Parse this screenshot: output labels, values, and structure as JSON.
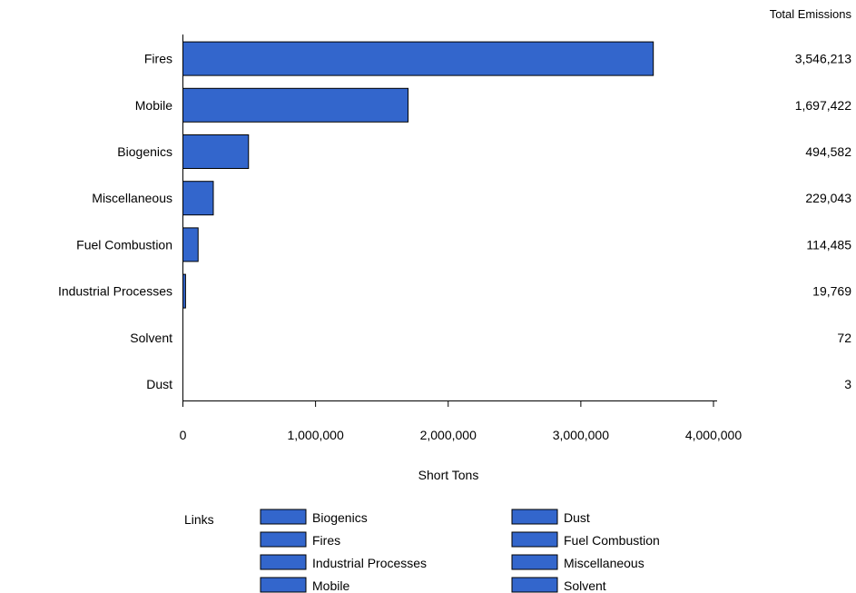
{
  "chart_data": {
    "type": "bar",
    "orientation": "horizontal",
    "categories": [
      "Fires",
      "Mobile",
      "Biogenics",
      "Miscellaneous",
      "Fuel Combustion",
      "Industrial Processes",
      "Solvent",
      "Dust"
    ],
    "values": [
      3546213,
      1697422,
      494582,
      229043,
      114485,
      19769,
      72,
      3
    ],
    "value_labels": [
      "3,546,213",
      "1,697,422",
      "494,582",
      "229,043",
      "114,485",
      "19,769",
      "72",
      "3"
    ],
    "value_column_title": "Total Emissions",
    "xlabel": "Short Tons",
    "ylabel": "",
    "xlim": [
      0,
      4000000
    ],
    "xticks": [
      0,
      1000000,
      2000000,
      3000000,
      4000000
    ],
    "xtick_labels": [
      "0",
      "1,000,000",
      "2,000,000",
      "3,000,000",
      "4,000,000"
    ],
    "grid": false,
    "bar_color": "#3366cc",
    "legend": {
      "title": "Links",
      "placement": "bottom",
      "entries": [
        "Biogenics",
        "Dust",
        "Fires",
        "Fuel Combustion",
        "Industrial Processes",
        "Miscellaneous",
        "Mobile",
        "Solvent"
      ]
    }
  }
}
